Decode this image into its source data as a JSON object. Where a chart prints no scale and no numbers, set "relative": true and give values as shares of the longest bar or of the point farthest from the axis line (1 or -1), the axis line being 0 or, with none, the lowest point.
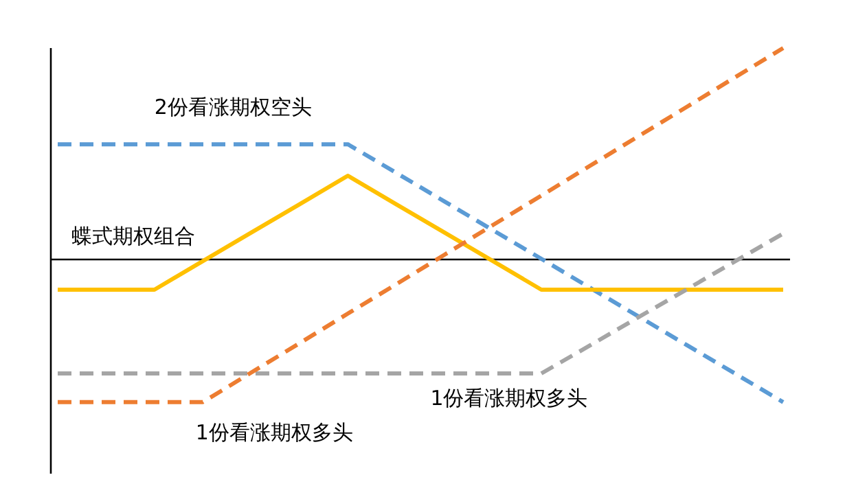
{
  "chart_data": {
    "type": "line",
    "relative": true,
    "categories": [
      null,
      null,
      null,
      null,
      null,
      null,
      null,
      null,
      null,
      null,
      null,
      null,
      null,
      null,
      null,
      null
    ],
    "marker": "none",
    "series": [
      {
        "name": "2份看涨期权空头",
        "color": "#5b9bd5",
        "line_style": "dashed",
        "values": [
          0.545,
          0.545,
          0.545,
          0.545,
          0.545,
          0.545,
          0.545,
          0.41,
          0.274,
          0.138,
          0.003,
          -0.133,
          -0.268,
          -0.404,
          -0.539,
          -0.675
        ]
      },
      {
        "name": "蝶式期权组合",
        "color": "#ffc000",
        "line_style": "solid",
        "values": [
          -0.143,
          -0.143,
          -0.143,
          -0.008,
          0.127,
          0.261,
          0.396,
          0.261,
          0.127,
          -0.008,
          -0.143,
          -0.143,
          -0.143,
          -0.143,
          -0.143,
          -0.143
        ]
      },
      {
        "name": "1份看涨期权多头",
        "color": "#a5a5a5",
        "line_style": "dashed",
        "values": [
          -0.539,
          -0.539,
          -0.539,
          -0.539,
          -0.539,
          -0.539,
          -0.539,
          -0.539,
          -0.539,
          -0.539,
          -0.539,
          -0.407,
          -0.274,
          -0.142,
          -0.009,
          0.123
        ]
      },
      {
        "name": "1份看涨期权多头",
        "color": "#ed7d31",
        "line_style": "dashed",
        "values": [
          -0.675,
          -0.675,
          -0.675,
          -0.675,
          -0.535,
          -0.396,
          -0.256,
          -0.117,
          0.023,
          0.163,
          0.302,
          0.442,
          0.582,
          0.721,
          0.861,
          1.0
        ]
      }
    ]
  }
}
